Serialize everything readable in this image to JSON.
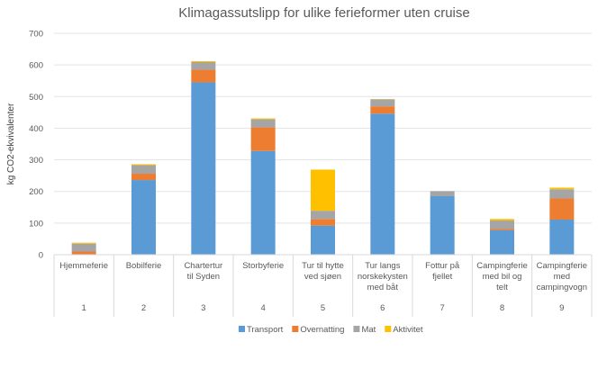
{
  "chart_data": {
    "type": "bar",
    "stacked": true,
    "title": "Klimagassutslipp for ulike ferieformer uten cruise",
    "xlabel": "",
    "ylabel": "kg CO2-ekvivalenter",
    "ylim": [
      0,
      700
    ],
    "yticks": [
      0,
      100,
      200,
      300,
      400,
      500,
      600,
      700
    ],
    "grid": true,
    "legend_position": "bottom",
    "categories": [
      "Hjemmeferie",
      "Bobilferie",
      "Chartertur til Syden",
      "Storbyferie",
      "Tur til hytte ved sjøen",
      "Tur langs norskekysten med båt",
      "Fottur på fjellet",
      "Campingferie med bil og telt",
      "Campingferie med campingvogn"
    ],
    "category_numbers": [
      "1",
      "2",
      "3",
      "4",
      "5",
      "6",
      "7",
      "8",
      "9"
    ],
    "series": [
      {
        "name": "Transport",
        "color": "#5B9BD5",
        "values": [
          0,
          236,
          545,
          328,
          92,
          446,
          185,
          77,
          111
        ]
      },
      {
        "name": "Overnatting",
        "color": "#ED7D31",
        "values": [
          10,
          20,
          40,
          75,
          21,
          23,
          0,
          4,
          67
        ]
      },
      {
        "name": "Mat",
        "color": "#A5A5A5",
        "values": [
          25,
          27,
          24,
          25,
          26,
          22,
          16,
          27,
          29
        ]
      },
      {
        "name": "Aktivitet",
        "color": "#FFC000",
        "values": [
          3,
          3,
          3,
          3,
          130,
          1,
          0,
          5,
          5
        ]
      }
    ]
  }
}
